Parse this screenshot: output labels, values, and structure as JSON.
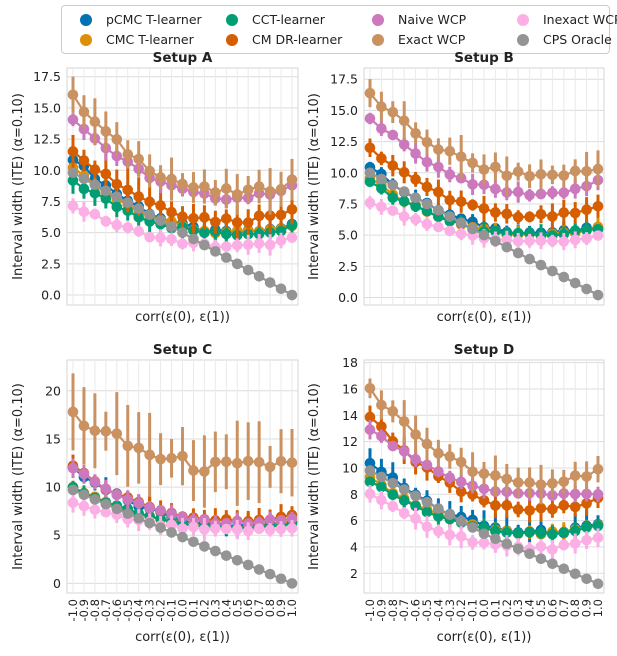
{
  "legend": {
    "items": [
      {
        "key": "pcmc",
        "label": "pCMC T-learner",
        "color": "#0072b2"
      },
      {
        "key": "cmc",
        "label": "CMC T-learner",
        "color": "#de8f05"
      },
      {
        "key": "cct",
        "label": "CCT-learner",
        "color": "#029e73"
      },
      {
        "key": "cmdr",
        "label": "CM DR-learner",
        "color": "#d55e00"
      },
      {
        "key": "naive",
        "label": "Naive WCP",
        "color": "#cc78bc"
      },
      {
        "key": "exact",
        "label": "Exact WCP",
        "color": "#ca9161"
      },
      {
        "key": "inexact",
        "label": "Inexact WCP",
        "color": "#fbafe4"
      },
      {
        "key": "oracle",
        "label": "CPS Oracle",
        "color": "#949494"
      }
    ]
  },
  "chart_data": [
    {
      "type": "line",
      "title": "Setup A",
      "ylabel": "Interval width (ITE) (α=0.10)",
      "xlabel": "corr(ε(0), ε(1))",
      "ylim": [
        -0.8,
        18.2
      ],
      "yticks": [
        0.0,
        2.5,
        5.0,
        7.5,
        10.0,
        12.5,
        15.0,
        17.5
      ],
      "ytick_labels": [
        "0.0",
        "2.5",
        "5.0",
        "7.5",
        "10.0",
        "12.5",
        "15.0",
        "17.5"
      ],
      "show_xticks": false,
      "series": {
        "exact": {
          "y0": 15.8,
          "ymid": 8.2,
          "y1": 9.1,
          "err": 1.3
        },
        "naive": {
          "y0": 14.2,
          "ymid": 7.8,
          "y1": 8.8,
          "err": 0.7
        },
        "cmdr": {
          "y0": 11.8,
          "ymid": 6.0,
          "y1": 7.0,
          "err": 1.2
        },
        "pcmc": {
          "y0": 11.0,
          "ymid": 5.0,
          "y1": 5.6,
          "err": 0.7
        },
        "cmc": {
          "y0": 10.2,
          "ymid": 5.0,
          "y1": 5.4,
          "err": 0.6
        },
        "cct": {
          "y0": 9.2,
          "ymid": 4.9,
          "y1": 5.5,
          "err": 0.8
        },
        "inexact": {
          "y0": 7.2,
          "ymid": 3.9,
          "y1": 4.5,
          "err": 0.6
        },
        "oracle": {
          "y0": 9.8,
          "ymid": 5.0,
          "y1": 0.0,
          "err": 0.0
        }
      }
    },
    {
      "type": "line",
      "title": "Setup B",
      "ylabel": "Interval width (ITE) (α=0.10)",
      "xlabel": "corr(ε(0), ε(1))",
      "ylim": [
        -0.6,
        18.4
      ],
      "yticks": [
        0.0,
        2.5,
        5.0,
        7.5,
        10.0,
        12.5,
        15.0,
        17.5
      ],
      "ytick_labels": [
        "0.0",
        "2.5",
        "5.0",
        "7.5",
        "10.0",
        "12.5",
        "15.0",
        "17.5"
      ],
      "show_xticks": false,
      "series": {
        "exact": {
          "y0": 16.3,
          "ymid": 9.8,
          "y1": 10.3,
          "err": 1.2
        },
        "naive": {
          "y0": 14.5,
          "ymid": 8.3,
          "y1": 9.3,
          "err": 0.6
        },
        "cmdr": {
          "y0": 12.0,
          "ymid": 6.5,
          "y1": 7.2,
          "err": 0.7
        },
        "pcmc": {
          "y0": 10.5,
          "ymid": 5.2,
          "y1": 5.6,
          "err": 0.5
        },
        "cmc": {
          "y0": 9.5,
          "ymid": 5.0,
          "y1": 5.6,
          "err": 0.5
        },
        "cct": {
          "y0": 9.2,
          "ymid": 5.0,
          "y1": 5.6,
          "err": 0.6
        },
        "inexact": {
          "y0": 7.7,
          "ymid": 4.5,
          "y1": 4.9,
          "err": 0.5
        },
        "oracle": {
          "y0": 10.0,
          "ymid": 5.0,
          "y1": 0.2,
          "err": 0.0
        }
      }
    },
    {
      "type": "line",
      "title": "Setup C",
      "ylabel": "Interval width (ITE) (α=0.10)",
      "xlabel": "corr(ε(0), ε(1))",
      "ylim": [
        -1.0,
        23.2
      ],
      "yticks": [
        0,
        5,
        10,
        15,
        20
      ],
      "ytick_labels": [
        "0",
        "5",
        "10",
        "15",
        "20"
      ],
      "show_xticks": true,
      "series": {
        "exact": {
          "y0": 17.5,
          "ymid": 12.0,
          "y1": 12.8,
          "err": 3.0
        },
        "naive": {
          "y0": 12.0,
          "ymid": 6.3,
          "y1": 6.7,
          "err": 0.7
        },
        "cmdr": {
          "y0": 12.0,
          "ymid": 6.5,
          "y1": 7.2,
          "err": 0.9
        },
        "pcmc": {
          "y0": 12.0,
          "ymid": 6.0,
          "y1": 6.3,
          "err": 0.9
        },
        "cmc": {
          "y0": 10.0,
          "ymid": 5.8,
          "y1": 6.4,
          "err": 0.6
        },
        "cct": {
          "y0": 10.0,
          "ymid": 5.8,
          "y1": 6.2,
          "err": 0.6
        },
        "inexact": {
          "y0": 8.3,
          "ymid": 5.5,
          "y1": 5.7,
          "err": 0.8
        },
        "oracle": {
          "y0": 9.7,
          "ymid": 4.8,
          "y1": 0.0,
          "err": 0.0
        }
      }
    },
    {
      "type": "line",
      "title": "Setup D",
      "ylabel": "Interval width (ITE) (α=0.10)",
      "xlabel": "corr(ε(0), ε(1))",
      "ylim": [
        0.5,
        18.2
      ],
      "yticks": [
        2,
        4,
        6,
        8,
        10,
        12,
        14,
        16,
        18
      ],
      "ytick_labels": [
        "2",
        "4",
        "6",
        "8",
        "10",
        "12",
        "14",
        "16",
        "18"
      ],
      "show_xticks": true,
      "series": {
        "exact": {
          "y0": 16.0,
          "ymid": 8.8,
          "y1": 10.0,
          "err": 1.1
        },
        "naive": {
          "y0": 13.0,
          "ymid": 8.0,
          "y1": 8.0,
          "err": 0.5
        },
        "cmdr": {
          "y0": 14.0,
          "ymid": 6.8,
          "y1": 7.8,
          "err": 0.7
        },
        "pcmc": {
          "y0": 10.5,
          "ymid": 5.1,
          "y1": 5.6,
          "err": 0.8
        },
        "cmc": {
          "y0": 9.2,
          "ymid": 5.0,
          "y1": 5.6,
          "err": 0.5
        },
        "cct": {
          "y0": 9.0,
          "ymid": 5.0,
          "y1": 5.6,
          "err": 0.5
        },
        "inexact": {
          "y0": 8.0,
          "ymid": 3.9,
          "y1": 4.6,
          "err": 0.6
        },
        "oracle": {
          "y0": 9.8,
          "ymid": 5.0,
          "y1": 1.2,
          "err": 0.0
        }
      }
    }
  ],
  "x_values": [
    -1.0,
    -0.9,
    -0.8,
    -0.7,
    -0.6,
    -0.5,
    -0.4,
    -0.3,
    -0.2,
    -0.1,
    0.0,
    0.1,
    0.2,
    0.3,
    0.4,
    0.5,
    0.6,
    0.7,
    0.8,
    0.9,
    1.0
  ],
  "x_tick_labels": [
    "-1.0",
    "-0.9",
    "-0.8",
    "-0.7",
    "-0.6",
    "-0.5",
    "-0.4",
    "-0.3",
    "-0.2",
    "-0.1",
    "0.0",
    "0.1",
    "0.2",
    "0.3",
    "0.4",
    "0.5",
    "0.6",
    "0.7",
    "0.8",
    "0.9",
    "1.0"
  ],
  "draw_order": [
    "pcmc",
    "cmc",
    "cct",
    "cmdr",
    "naive",
    "exact",
    "inexact",
    "oracle"
  ]
}
